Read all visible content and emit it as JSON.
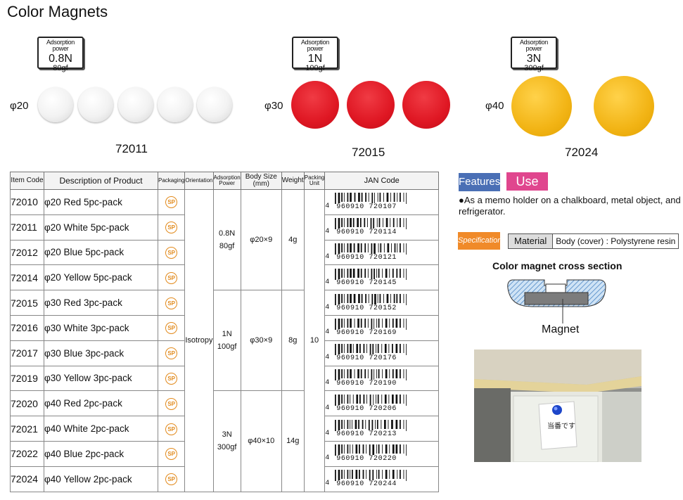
{
  "title": "Color Magnets",
  "groups": [
    {
      "badge_label": "Adsorption power",
      "badge_value": "0.8N",
      "badge_sub": "80gf",
      "size": "φ20",
      "code": "72011"
    },
    {
      "badge_label": "Adsorption power",
      "badge_value": "1N",
      "badge_sub": "100gf",
      "size": "φ30",
      "code": "72015"
    },
    {
      "badge_label": "Adsorption power",
      "badge_value": "3N",
      "badge_sub": "300gf",
      "size": "φ40",
      "code": "72024"
    }
  ],
  "colors": {
    "white": "#f2f2f2",
    "red": "#df1723",
    "yellow": "#f2b415",
    "features_tag": "#4a6fb5",
    "use_tag": "#e0468e",
    "spec_tag": "#f08a29"
  },
  "table": {
    "headers": {
      "code": "Item Code",
      "desc": "Description of Product",
      "packaging": "Packaging",
      "orientation": "Orientation",
      "power": "Adsorption Power",
      "body": "Body Size (mm)",
      "weight": "Weight",
      "unit": "Packing Unit",
      "jan": "JAN Code"
    },
    "rows": [
      {
        "code": "72010",
        "desc": "φ20 Red 5pc-pack",
        "jan": "4960910720107"
      },
      {
        "code": "72011",
        "desc": "φ20 White 5pc-pack",
        "jan": "4960910720114"
      },
      {
        "code": "72012",
        "desc": "φ20 Blue 5pc-pack",
        "jan": "4960910720121"
      },
      {
        "code": "72014",
        "desc": "φ20 Yellow 5pc-pack",
        "jan": "4960910720145"
      },
      {
        "code": "72015",
        "desc": "φ30 Red 3pc-pack",
        "jan": "4960910720152"
      },
      {
        "code": "72016",
        "desc": "φ30 White 3pc-pack",
        "jan": "4960910720169"
      },
      {
        "code": "72017",
        "desc": "φ30 Blue 3pc-pack",
        "jan": "4960910720176"
      },
      {
        "code": "72019",
        "desc": "φ30 Yellow 3pc-pack",
        "jan": "4960910720190"
      },
      {
        "code": "72020",
        "desc": "φ40 Red 2pc-pack",
        "jan": "4960910720206"
      },
      {
        "code": "72021",
        "desc": "φ40 White 2pc-pack",
        "jan": "4960910720213"
      },
      {
        "code": "72022",
        "desc": "φ40 Blue 2pc-pack",
        "jan": "4960910720220"
      },
      {
        "code": "72024",
        "desc": "φ40 Yellow 2pc-pack",
        "jan": "4960910720244"
      }
    ],
    "packaging_icon": "SP",
    "orientation": "Isotropy",
    "packing_unit": "10",
    "merged": [
      {
        "power_n": "0.8N",
        "power_gf": "80gf",
        "body": "φ20×9",
        "weight": "4g"
      },
      {
        "power_n": "1N",
        "power_gf": "100gf",
        "body": "φ30×9",
        "weight": "8g"
      },
      {
        "power_n": "3N",
        "power_gf": "300gf",
        "body": "φ40×10",
        "weight": "14g"
      }
    ]
  },
  "features": {
    "features_tag": "Features",
    "use_tag": "Use",
    "use_text": "●As a memo holder on a chalkboard, metal object, and refrigerator."
  },
  "specifications": {
    "tag": "Specifications",
    "material_key": "Material",
    "material_value": "Body (cover) : Polystyrene resin"
  },
  "cross_section": {
    "title": "Color magnet cross section",
    "label": "Magnet"
  },
  "photo": {
    "note_text": "当番です"
  }
}
